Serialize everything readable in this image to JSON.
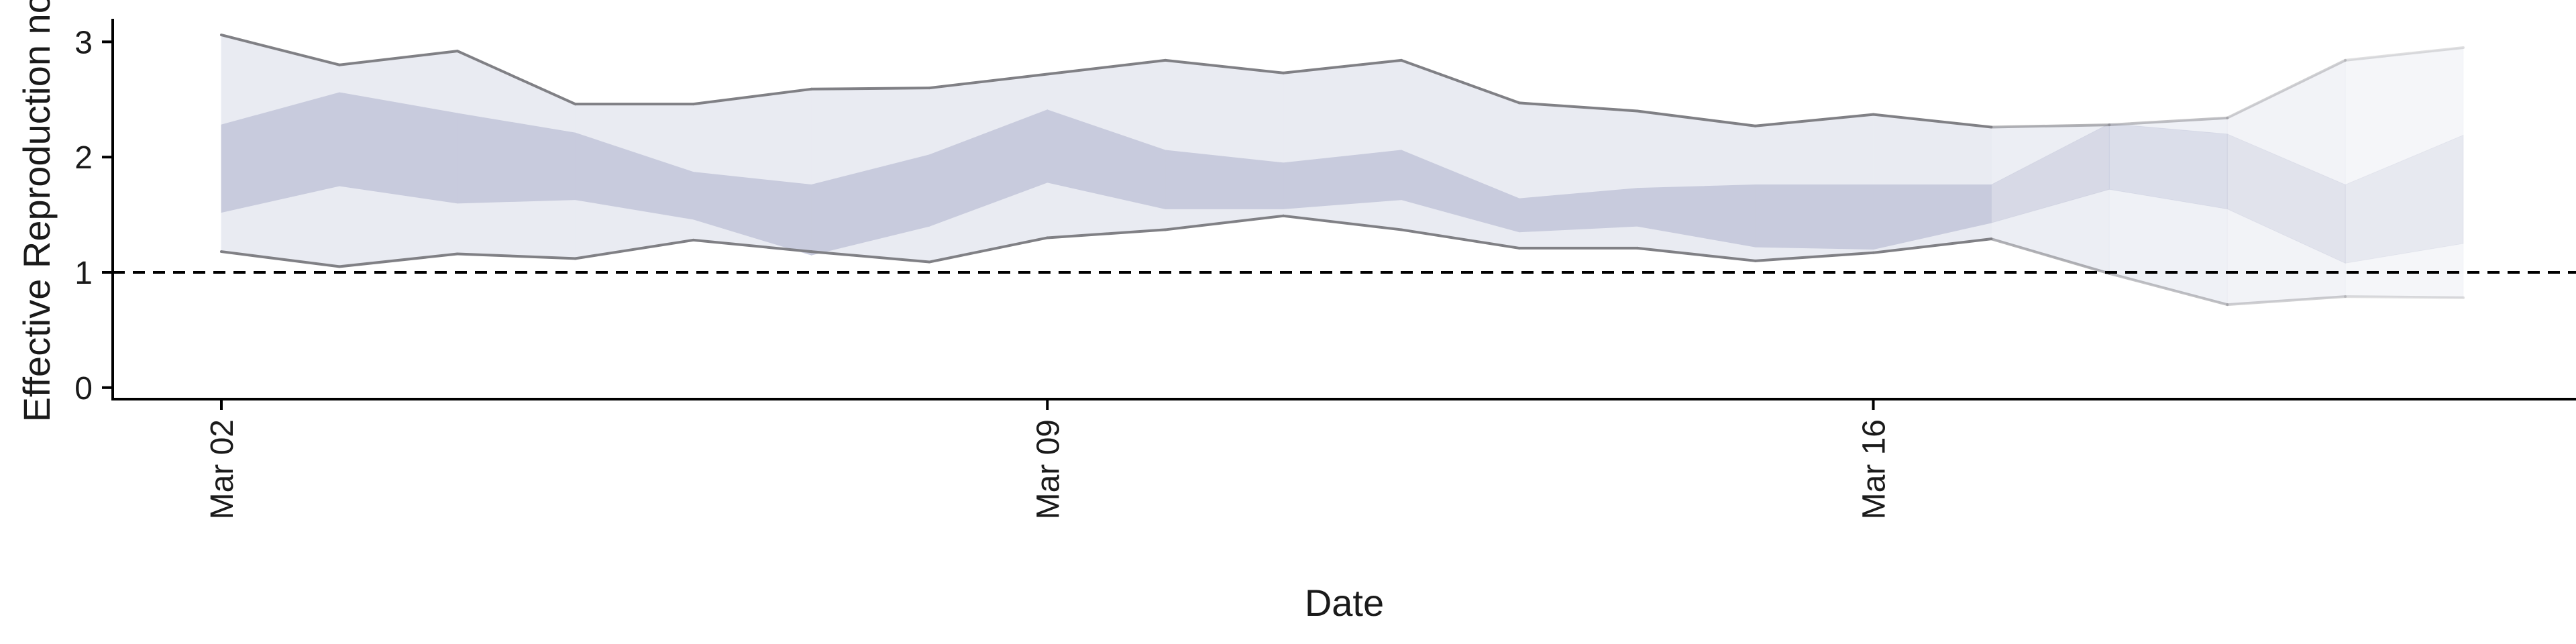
{
  "chart_data": {
    "type": "area",
    "title": "",
    "xlabel": "Date",
    "ylabel": "Effective Reproduction no.",
    "x": [
      "2020-03-02",
      "2020-03-03",
      "2020-03-04",
      "2020-03-05",
      "2020-03-06",
      "2020-03-07",
      "2020-03-08",
      "2020-03-09",
      "2020-03-10",
      "2020-03-11",
      "2020-03-12",
      "2020-03-13",
      "2020-03-14",
      "2020-03-15",
      "2020-03-16",
      "2020-03-17",
      "2020-03-18",
      "2020-03-19",
      "2020-03-20",
      "2020-03-21"
    ],
    "xticks": [
      {
        "date": "2020-03-02",
        "label": "Mar 02"
      },
      {
        "date": "2020-03-09",
        "label": "Mar 09"
      },
      {
        "date": "2020-03-16",
        "label": "Mar 16"
      }
    ],
    "xlim": [
      "2020-03-01",
      "2020-03-22"
    ],
    "ylim": [
      -0.1,
      3.2
    ],
    "yticks": [
      0,
      1,
      2,
      3
    ],
    "reference_line": {
      "y": 1,
      "style": "dashed"
    },
    "series": [
      {
        "band": "outer",
        "lower": [
          1.18,
          1.05,
          1.16,
          1.12,
          1.28,
          1.18,
          1.09,
          1.3,
          1.37,
          1.49,
          1.37,
          1.21,
          1.21,
          1.1,
          1.17,
          1.29,
          0.99,
          0.72,
          0.79,
          0.78
        ],
        "upper": [
          3.06,
          2.8,
          2.92,
          2.46,
          2.46,
          2.59,
          2.6,
          2.72,
          2.84,
          2.73,
          2.84,
          2.47,
          2.4,
          2.27,
          2.37,
          2.26,
          2.28,
          2.34,
          2.84,
          2.95
        ]
      },
      {
        "band": "inner",
        "lower": [
          1.52,
          1.75,
          1.6,
          1.63,
          1.46,
          1.15,
          1.4,
          1.78,
          1.55,
          1.55,
          1.63,
          1.35,
          1.4,
          1.22,
          1.2,
          1.43,
          1.72,
          1.55,
          1.08,
          1.25
        ],
        "upper": [
          2.28,
          2.56,
          2.38,
          2.21,
          1.87,
          1.76,
          2.02,
          2.41,
          2.06,
          1.95,
          2.06,
          1.64,
          1.73,
          1.76,
          1.76,
          1.76,
          2.29,
          2.2,
          1.76,
          2.19
        ]
      }
    ],
    "segments": [
      {
        "from": 0,
        "to": 15,
        "certainty": "estimate"
      },
      {
        "from": 15,
        "to": 19,
        "certainty": "partial"
      }
    ],
    "colors": {
      "outer_band": "#e9ebf2",
      "inner_band": "#c8cbdd",
      "bound_line": "#808085",
      "reference_line": "#000000",
      "axis": "#000000"
    },
    "grid": false,
    "legend": "none"
  }
}
